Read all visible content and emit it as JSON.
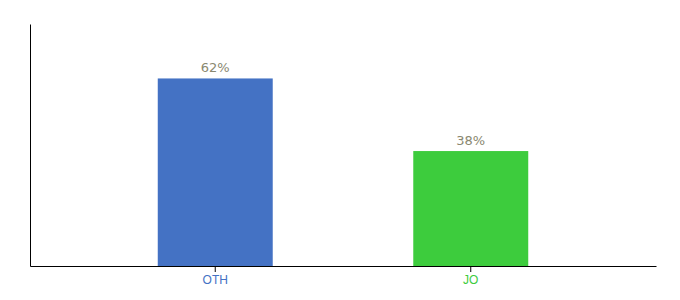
{
  "chart_data": {
    "type": "bar",
    "categories": [
      "OTH",
      "JO"
    ],
    "values": [
      62,
      38
    ],
    "value_labels": [
      "62%",
      "38%"
    ],
    "colors": [
      "#4472c4",
      "#3dcc3d"
    ],
    "ylim": [
      0,
      80
    ],
    "yticks": [],
    "data_labels": true,
    "tick_labels": "x"
  }
}
